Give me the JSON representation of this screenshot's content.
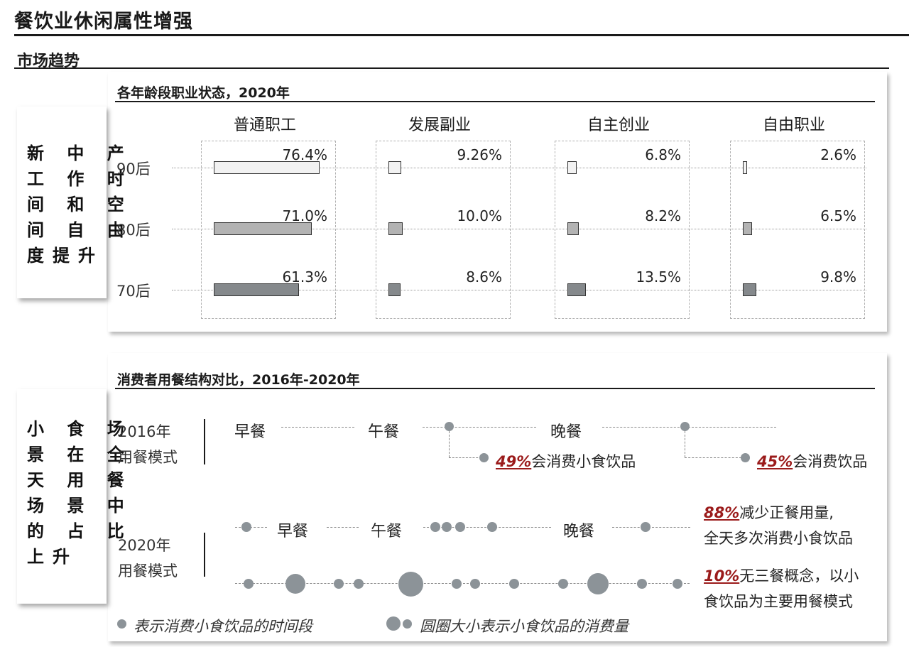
{
  "page": {
    "title": "餐饮业休闲属性增强",
    "section": "市场趋势"
  },
  "panel1": {
    "side_text": "新 中 产\n工 作 时\n间 和 空\n间 自 由\n度提升",
    "title": "各年龄段职业状态，2020年"
  },
  "panel2": {
    "side_text": "小 食 场\n景 在 全\n天 用 餐\n场 景 中\n的 占 比\n上升",
    "title": "消费者用餐结构对比，2016年-2020年",
    "year_2016": "2016年\n用餐模式",
    "year_2020": "2020年\n用餐模式",
    "meals": [
      "早餐",
      "午餐",
      "晚餐"
    ],
    "note_2016_a_pct": "49%",
    "note_2016_a_text": "会消费小食饮品",
    "note_2016_b_pct": "45%",
    "note_2016_b_text": "会消费饮品",
    "note_2020_a_pct": "88%",
    "note_2020_a_text1": "减少正餐用量,",
    "note_2020_a_text2": "全天多次消费小食饮品",
    "note_2020_b_pct": "10%",
    "note_2020_b_text1": "无三餐概念，以小",
    "note_2020_b_text2": "食饮品为主要用餐模式",
    "legend_dot": "表示消费小食饮品的时间段",
    "legend_size": "圆圈大小表示小食饮品的消费量"
  },
  "chart_data": [
    {
      "type": "bar",
      "title": "各年龄段职业状态，2020年",
      "categories": [
        "90后",
        "80后",
        "70后"
      ],
      "series": [
        {
          "name": "普通职工",
          "values": [
            76.4,
            71.0,
            61.3
          ],
          "labels": [
            "76.4%",
            "71.0%",
            "61.3%"
          ]
        },
        {
          "name": "发展副业",
          "values": [
            9.26,
            10.0,
            8.6
          ],
          "labels": [
            "9.26%",
            "10.0%",
            "8.6%"
          ]
        },
        {
          "name": "自主创业",
          "values": [
            6.8,
            8.2,
            13.5
          ],
          "labels": [
            "6.8%",
            "8.2%",
            "13.5%"
          ]
        },
        {
          "name": "自由职业",
          "values": [
            2.6,
            6.5,
            9.8
          ],
          "labels": [
            "2.6%",
            "6.5%",
            "9.8%"
          ]
        }
      ],
      "colors": [
        "#f2f2f2",
        "#b3b3b3",
        "#85898c"
      ],
      "unit": "%"
    }
  ],
  "colors": {
    "accent_red": "#9b1b1b",
    "dot_gray": "#8c9398"
  }
}
